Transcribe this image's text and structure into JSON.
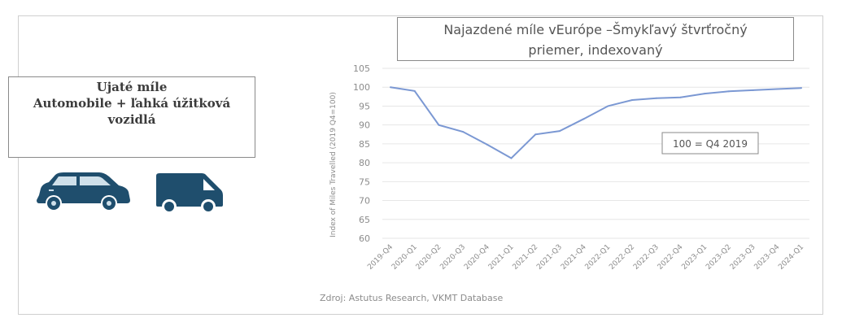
{
  "left_panel": {
    "line1": "Ujaté míle",
    "line2": "Automobile + ľahká úžitková",
    "line3": "vozidlá"
  },
  "icons": {
    "car": "car-icon",
    "van": "van-icon",
    "icon_color": "#1f4e6d"
  },
  "chart_data": {
    "type": "line",
    "title_line1": "Najazdené míle vEurópe –Šmykľavý štvrťročný",
    "title_line2": "priemer, indexovaný",
    "ylabel": "Index of Miles Travelled (2019 Q4=100)",
    "xlabel": "",
    "ylim": [
      60,
      105
    ],
    "yticks": [
      60,
      65,
      70,
      75,
      80,
      85,
      90,
      95,
      100,
      105
    ],
    "grid": true,
    "line_color": "#7b98d3",
    "categories": [
      "2019-Q4",
      "2020-Q1",
      "2020-Q2",
      "2020-Q3",
      "2020-Q4",
      "2021-Q1",
      "2021-Q2",
      "2021-Q3",
      "2021-Q4",
      "2022-Q1",
      "2022-Q2",
      "2022-Q3",
      "2022-Q4",
      "2023-Q1",
      "2023-Q2",
      "2023-Q3",
      "2023-Q4",
      "2024-Q1"
    ],
    "series": [
      {
        "values": [
          100,
          99,
          90,
          88.2,
          84.8,
          81.2,
          87.5,
          88.4,
          91.6,
          95,
          96.6,
          97.1,
          97.3,
          98.3,
          98.9,
          99.2,
          99.5,
          99.8
        ]
      }
    ],
    "annotation": "100 = Q4 2019"
  },
  "source": "Zdroj: Astutus Research, VKMT Database"
}
